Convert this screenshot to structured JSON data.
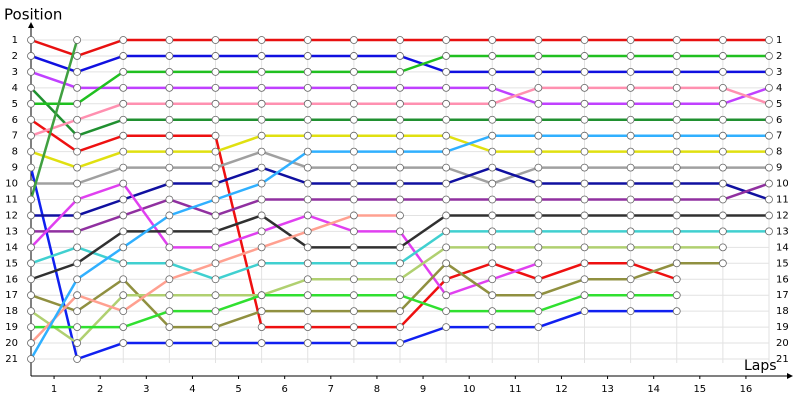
{
  "chart_data": {
    "type": "line",
    "x_label": "Laps",
    "y_label": "Position",
    "x": [
      0,
      1,
      2,
      3,
      4,
      5,
      6,
      7,
      8,
      9,
      10,
      11,
      12,
      13,
      14,
      15,
      16
    ],
    "xlim": [
      0,
      16
    ],
    "xticks": [
      {
        "value": 0.5,
        "label": "1"
      },
      {
        "value": 1.5,
        "label": "2"
      },
      {
        "value": 2.5,
        "label": "3"
      },
      {
        "value": 3.5,
        "label": "4"
      },
      {
        "value": 4.5,
        "label": "5"
      },
      {
        "value": 5.5,
        "label": "6"
      },
      {
        "value": 6.5,
        "label": "7"
      },
      {
        "value": 7.5,
        "label": "8"
      },
      {
        "value": 8.5,
        "label": "9"
      },
      {
        "value": 9.5,
        "label": "10"
      },
      {
        "value": 10.5,
        "label": "11"
      },
      {
        "value": 11.5,
        "label": "12"
      },
      {
        "value": 12.5,
        "label": "13"
      },
      {
        "value": 13.5,
        "label": "14"
      },
      {
        "value": 14.5,
        "label": "15"
      },
      {
        "value": 15.5,
        "label": "16"
      }
    ],
    "ylim": [
      1,
      21
    ],
    "y_inverted": true,
    "yticks": [
      1,
      2,
      3,
      4,
      5,
      6,
      7,
      8,
      9,
      10,
      11,
      12,
      13,
      14,
      15,
      16,
      17,
      18,
      19,
      20,
      21
    ],
    "grid": true,
    "series": [
      {
        "color": "#e81010",
        "values": [
          1,
          2,
          1,
          1,
          1,
          1,
          1,
          1,
          1,
          1,
          1,
          1,
          1,
          1,
          1,
          1,
          1
        ]
      },
      {
        "color": "#1010e0",
        "values": [
          2,
          3,
          2,
          2,
          2,
          2,
          2,
          2,
          2,
          3,
          3,
          3,
          3,
          3,
          3,
          3,
          3
        ]
      },
      {
        "color": "#c040ff",
        "values": [
          3,
          4,
          4,
          4,
          4,
          4,
          4,
          4,
          4,
          4,
          4,
          5,
          5,
          5,
          5,
          5,
          4
        ]
      },
      {
        "color": "#209030",
        "values": [
          4,
          7,
          6,
          6,
          6,
          6,
          6,
          6,
          6,
          6,
          6,
          6,
          6,
          6,
          6,
          6,
          6
        ]
      },
      {
        "color": "#20c020",
        "values": [
          5,
          5,
          3,
          3,
          3,
          3,
          3,
          3,
          3,
          2,
          2,
          2,
          2,
          2,
          2,
          2,
          2
        ]
      },
      {
        "color": "#ee1010",
        "values": [
          6,
          8,
          7,
          7,
          7,
          19,
          19,
          19,
          19,
          16,
          15,
          16,
          15,
          15,
          16,
          null,
          null
        ]
      },
      {
        "color": "#ff90b0",
        "values": [
          7,
          6,
          5,
          5,
          5,
          5,
          5,
          5,
          5,
          5,
          5,
          4,
          4,
          4,
          4,
          4,
          5
        ]
      },
      {
        "color": "#e0e010",
        "values": [
          8,
          9,
          8,
          8,
          8,
          7,
          7,
          7,
          7,
          7,
          8,
          8,
          8,
          8,
          8,
          8,
          8
        ]
      },
      {
        "color": "#1020f0",
        "values": [
          9,
          21,
          20,
          20,
          20,
          20,
          20,
          20,
          20,
          19,
          19,
          19,
          18,
          18,
          18,
          null,
          null
        ]
      },
      {
        "color": "#a0a0a0",
        "values": [
          10,
          10,
          9,
          9,
          9,
          8,
          9,
          9,
          9,
          9,
          10,
          9,
          9,
          9,
          9,
          9,
          9
        ]
      },
      {
        "color": "#40a040",
        "values": [
          11,
          1,
          null,
          null,
          null,
          null,
          null,
          null,
          null,
          null,
          null,
          null,
          null,
          null,
          null,
          null,
          null
        ]
      },
      {
        "color": "#1010a0",
        "values": [
          12,
          12,
          11,
          10,
          10,
          9,
          10,
          10,
          10,
          10,
          9,
          10,
          10,
          10,
          10,
          10,
          11
        ]
      },
      {
        "color": "#9030a0",
        "values": [
          13,
          13,
          12,
          11,
          12,
          11,
          11,
          11,
          11,
          11,
          11,
          11,
          11,
          11,
          11,
          11,
          10
        ]
      },
      {
        "color": "#e040f0",
        "values": [
          14,
          11,
          10,
          14,
          14,
          13,
          12,
          13,
          13,
          17,
          16,
          15,
          null,
          null,
          null,
          null,
          null
        ]
      },
      {
        "color": "#40d0d0",
        "values": [
          15,
          14,
          15,
          15,
          16,
          15,
          15,
          15,
          15,
          13,
          13,
          13,
          13,
          13,
          13,
          13,
          13
        ]
      },
      {
        "color": "#303030",
        "values": [
          16,
          15,
          13,
          13,
          13,
          12,
          14,
          14,
          14,
          12,
          12,
          12,
          12,
          12,
          12,
          12,
          12
        ]
      },
      {
        "color": "#909040",
        "values": [
          17,
          18,
          16,
          19,
          19,
          18,
          18,
          18,
          18,
          15,
          17,
          17,
          16,
          16,
          15,
          15,
          null
        ]
      },
      {
        "color": "#b0d070",
        "values": [
          18,
          20,
          17,
          17,
          17,
          17,
          16,
          16,
          16,
          14,
          14,
          14,
          14,
          14,
          14,
          14,
          null
        ]
      },
      {
        "color": "#30e030",
        "values": [
          19,
          19,
          19,
          18,
          18,
          17,
          17,
          17,
          17,
          18,
          18,
          18,
          17,
          17,
          17,
          null,
          null
        ]
      },
      {
        "color": "#ffa090",
        "values": [
          20,
          17,
          18,
          16,
          15,
          14,
          13,
          12,
          12,
          null,
          null,
          null,
          null,
          null,
          null,
          null,
          null
        ]
      },
      {
        "color": "#30b0ff",
        "values": [
          21,
          16,
          14,
          12,
          11,
          10,
          8,
          8,
          8,
          8,
          7,
          7,
          7,
          7,
          7,
          7,
          7
        ]
      }
    ]
  }
}
